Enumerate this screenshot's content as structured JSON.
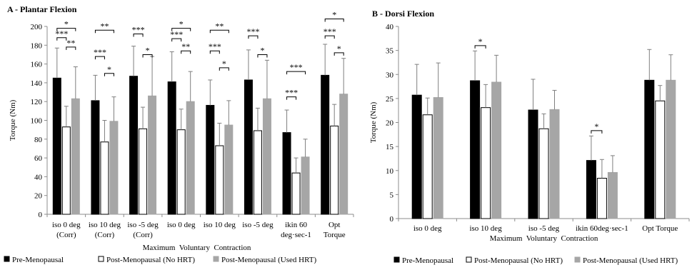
{
  "legend": [
    {
      "name": "Pre-Menopausal",
      "color": "#000000",
      "stroke": "#000000"
    },
    {
      "name": "Post-Menopausal (No HRT)",
      "color": "#ffffff",
      "stroke": "#000000"
    },
    {
      "name": "Post-Menopausal (Used HRT)",
      "color": "#a6a6a6",
      "stroke": "#a6a6a6"
    }
  ],
  "chart_data": [
    {
      "type": "bar",
      "title": "A - Plantar Flexion",
      "xlabel": "Maximum  Voluntary  Contraction",
      "ylabel": "Torque (Nm)",
      "ylim": [
        0,
        200
      ],
      "yticks": [
        "0",
        "20",
        "40",
        "60",
        "80",
        "100",
        "120",
        "140",
        "160",
        "180",
        "200"
      ],
      "categories": [
        [
          "iso 0 deg",
          "(Corr)"
        ],
        [
          "iso 10 deg",
          "(Corr)"
        ],
        [
          "iso -5 deg",
          "(Corr)"
        ],
        [
          "iso 0 deg"
        ],
        [
          "iso 10 deg"
        ],
        [
          "iso -5 deg"
        ],
        [
          "ikin 60",
          "deg·sec-1"
        ],
        [
          "Opt",
          "Torque"
        ]
      ],
      "series": [
        {
          "name": "Pre-Menopausal",
          "values": [
            145,
            121,
            147,
            141,
            116,
            143,
            87,
            148
          ],
          "errors": [
            32,
            27,
            32,
            32,
            27,
            32,
            24,
            33
          ]
        },
        {
          "name": "Post-Menopausal (No HRT)",
          "values": [
            93,
            77,
            91,
            90,
            73,
            89,
            44,
            94
          ],
          "errors": [
            22,
            23,
            23,
            22,
            24,
            24,
            16,
            23
          ]
        },
        {
          "name": "Post-Menopausal (Used HRT)",
          "values": [
            123,
            99,
            126,
            120,
            95,
            123,
            61,
            128
          ],
          "errors": [
            34,
            26,
            42,
            32,
            26,
            41,
            19,
            38
          ]
        }
      ],
      "annotations": [
        {
          "text": "*",
          "from": 0,
          "fromSeries": 0,
          "to": 0,
          "toSeries": 2,
          "y": 198
        },
        {
          "text": "***",
          "from": 0,
          "fromSeries": 0,
          "to": 0,
          "toSeries": 1,
          "y": 188
        },
        {
          "text": "**",
          "from": 0,
          "fromSeries": 1,
          "to": 0,
          "toSeries": 2,
          "y": 178
        },
        {
          "text": "**",
          "from": 1,
          "fromSeries": 0,
          "to": 1,
          "toSeries": 2,
          "y": 196
        },
        {
          "text": "***",
          "from": 1,
          "fromSeries": 0,
          "to": 1,
          "toSeries": 1,
          "y": 168
        },
        {
          "text": "*",
          "from": 1,
          "fromSeries": 1,
          "to": 1,
          "toSeries": 2,
          "y": 150
        },
        {
          "text": "***",
          "from": 2,
          "fromSeries": 0,
          "to": 2,
          "toSeries": 1,
          "y": 192
        },
        {
          "text": "*",
          "from": 2,
          "fromSeries": 1,
          "to": 2,
          "toSeries": 2,
          "y": 170
        },
        {
          "text": "*",
          "from": 3,
          "fromSeries": 0,
          "to": 3,
          "toSeries": 2,
          "y": 198
        },
        {
          "text": "***",
          "from": 3,
          "fromSeries": 0,
          "to": 3,
          "toSeries": 1,
          "y": 187
        },
        {
          "text": "**",
          "from": 3,
          "fromSeries": 1,
          "to": 3,
          "toSeries": 2,
          "y": 174
        },
        {
          "text": "**",
          "from": 4,
          "fromSeries": 0,
          "to": 4,
          "toSeries": 2,
          "y": 196
        },
        {
          "text": "***",
          "from": 4,
          "fromSeries": 0,
          "to": 4,
          "toSeries": 1,
          "y": 174
        },
        {
          "text": "*",
          "from": 4,
          "fromSeries": 1,
          "to": 4,
          "toSeries": 2,
          "y": 156
        },
        {
          "text": "***",
          "from": 5,
          "fromSeries": 0,
          "to": 5,
          "toSeries": 1,
          "y": 190
        },
        {
          "text": "*",
          "from": 5,
          "fromSeries": 1,
          "to": 5,
          "toSeries": 2,
          "y": 170
        },
        {
          "text": "***",
          "from": 6,
          "fromSeries": 0,
          "to": 6,
          "toSeries": 2,
          "y": 152
        },
        {
          "text": "***",
          "from": 6,
          "fromSeries": 0,
          "to": 6,
          "toSeries": 1,
          "y": 125
        },
        {
          "text": "*",
          "from": 7,
          "fromSeries": 0,
          "to": 7,
          "toSeries": 2,
          "y": 208
        },
        {
          "text": "***",
          "from": 7,
          "fromSeries": 0,
          "to": 7,
          "toSeries": 1,
          "y": 190
        },
        {
          "text": "*",
          "from": 7,
          "fromSeries": 1,
          "to": 7,
          "toSeries": 2,
          "y": 172
        }
      ]
    },
    {
      "type": "bar",
      "title": "B - Dorsi Flexion",
      "xlabel": "Maximum  Voluntary  Contraction",
      "ylabel": "Torque (Nm)",
      "ylim": [
        0,
        40
      ],
      "yticks": [
        "0",
        "5",
        "10",
        "15",
        "20",
        "25",
        "30",
        "35",
        "40"
      ],
      "categories": [
        [
          "iso 0 deg"
        ],
        [
          "iso 10 deg"
        ],
        [
          "iso -5 deg"
        ],
        [
          "ikin 60deg·sec-1"
        ],
        [
          "Opt Torque"
        ]
      ],
      "series": [
        {
          "name": "Pre-Menopausal",
          "values": [
            25.7,
            28.7,
            22.6,
            12.1,
            28.8
          ],
          "errors": [
            6.4,
            6.2,
            6.4,
            5.1,
            6.4
          ]
        },
        {
          "name": "Post-Menopausal (No HRT)",
          "values": [
            21.6,
            23.1,
            18.7,
            8.4,
            24.5
          ],
          "errors": [
            3.5,
            4.8,
            3.1,
            3.9,
            3.2
          ]
        },
        {
          "name": "Post-Menopausal (Used HRT)",
          "values": [
            25.2,
            28.4,
            22.7,
            9.6,
            28.8
          ],
          "errors": [
            7.2,
            5.6,
            4.0,
            3.5,
            5.3
          ]
        }
      ],
      "annotations": [
        {
          "text": "*",
          "from": 1,
          "fromSeries": 0,
          "to": 1,
          "toSeries": 1,
          "y": 36.0
        },
        {
          "text": "*",
          "from": 3,
          "fromSeries": 0,
          "to": 3,
          "toSeries": 1,
          "y": 18.3
        }
      ]
    }
  ]
}
